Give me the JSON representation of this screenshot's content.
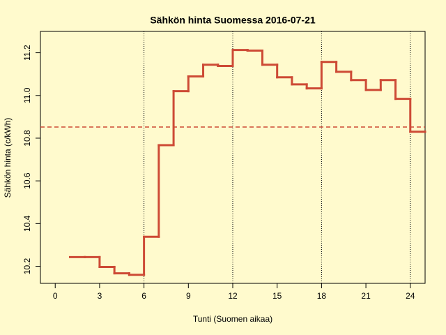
{
  "chart_data": {
    "type": "step",
    "title": "Sähkön hinta Suomessa 2016-07-21",
    "x_label": "Tunti (Suomen aikaa)",
    "y_label": "Sähkön hinta (c/kWh)",
    "x": [
      1,
      2,
      3,
      4,
      5,
      6,
      7,
      8,
      9,
      10,
      11,
      12,
      13,
      14,
      15,
      16,
      17,
      18,
      19,
      20,
      21,
      22,
      23,
      24,
      25
    ],
    "series": [
      {
        "color": "#cd4a35",
        "values": [
          10.243,
          10.243,
          10.197,
          10.167,
          10.16,
          10.338,
          10.767,
          11.02,
          11.089,
          11.144,
          11.138,
          11.213,
          11.21,
          11.144,
          11.085,
          11.052,
          11.033,
          11.157,
          11.111,
          11.072,
          11.026,
          11.072,
          10.984,
          10.83,
          10.83
        ]
      }
    ],
    "mean_line": 10.852,
    "vertical_lines": [
      6,
      12,
      18,
      24
    ],
    "xlim": [
      -1,
      25
    ],
    "ylim": [
      10.12,
      11.3
    ],
    "xticks": [
      0,
      3,
      6,
      9,
      12,
      15,
      18,
      21,
      24
    ],
    "yticks": [
      10.2,
      10.4,
      10.6,
      10.8,
      {
        "value": 11,
        "label": "11.0"
      },
      11.2
    ]
  }
}
